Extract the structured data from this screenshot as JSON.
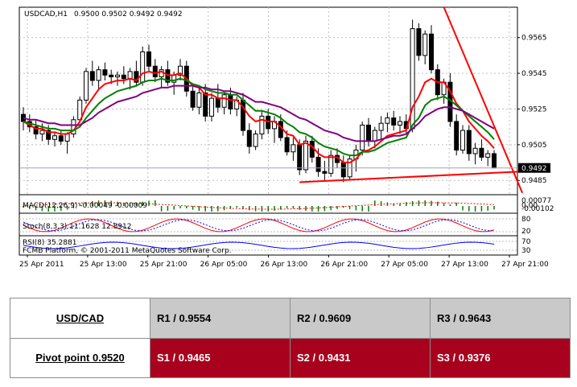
{
  "chart_header": {
    "title": "USDCAD,H1",
    "ohlc": "0.9500 0.9502 0.9492 0.9492"
  },
  "chart_data": [
    {
      "type": "candlestick",
      "title": "USDCAD,H1",
      "ohlc_label": "0.9500 0.9502 0.9492 0.9492",
      "x_tick_labels": [
        "25 Apr 2011",
        "25 Apr 13:00",
        "25 Apr 21:00",
        "26 Apr 05:00",
        "26 Apr 13:00",
        "26 Apr 21:00",
        "27 Apr 05:00",
        "27 Apr 13:00",
        "27 Apr 21:00"
      ],
      "y_tick_labels": [
        "0.9565",
        "0.9545",
        "0.9525",
        "0.9505",
        "0.9485"
      ],
      "ylim": [
        0.9477,
        0.9582
      ],
      "current_price": 0.9492,
      "current_price_label": "0.9492",
      "grid": true,
      "candles": [
        [
          0.9522,
          0.9526,
          0.9513,
          0.9518
        ],
        [
          0.9518,
          0.9522,
          0.9512,
          0.9515
        ],
        [
          0.9515,
          0.9519,
          0.9508,
          0.9511
        ],
        [
          0.9511,
          0.9517,
          0.9507,
          0.9513
        ],
        [
          0.9513,
          0.9516,
          0.9505,
          0.9508
        ],
        [
          0.9508,
          0.9512,
          0.9504,
          0.951
        ],
        [
          0.951,
          0.9513,
          0.9505,
          0.9507
        ],
        [
          0.9507,
          0.9512,
          0.95,
          0.9511
        ],
        [
          0.9511,
          0.9521,
          0.9509,
          0.9519
        ],
        [
          0.9519,
          0.9532,
          0.9517,
          0.953
        ],
        [
          0.953,
          0.9548,
          0.9528,
          0.9546
        ],
        [
          0.9546,
          0.9552,
          0.9538,
          0.9541
        ],
        [
          0.9541,
          0.9549,
          0.9536,
          0.9547
        ],
        [
          0.9547,
          0.9551,
          0.9541,
          0.9544
        ],
        [
          0.9544,
          0.9547,
          0.9539,
          0.9543
        ],
        [
          0.9543,
          0.9546,
          0.9538,
          0.9544
        ],
        [
          0.9544,
          0.9549,
          0.9539,
          0.9542
        ],
        [
          0.9542,
          0.9548,
          0.9536,
          0.9546
        ],
        [
          0.9546,
          0.9552,
          0.9538,
          0.954
        ],
        [
          0.954,
          0.956,
          0.9538,
          0.9557
        ],
        [
          0.9557,
          0.9561,
          0.9546,
          0.9549
        ],
        [
          0.9549,
          0.9553,
          0.954,
          0.9543
        ],
        [
          0.9543,
          0.9549,
          0.9537,
          0.9547
        ],
        [
          0.9547,
          0.9552,
          0.9538,
          0.954
        ],
        [
          0.954,
          0.9546,
          0.9533,
          0.9544
        ],
        [
          0.9544,
          0.9553,
          0.9541,
          0.9549
        ],
        [
          0.9549,
          0.9552,
          0.9532,
          0.9535
        ],
        [
          0.9535,
          0.9539,
          0.9524,
          0.9526
        ],
        [
          0.9526,
          0.9537,
          0.9522,
          0.9534
        ],
        [
          0.9534,
          0.9539,
          0.9518,
          0.9521
        ],
        [
          0.9521,
          0.9534,
          0.9518,
          0.9531
        ],
        [
          0.9531,
          0.9539,
          0.9523,
          0.9526
        ],
        [
          0.9526,
          0.9535,
          0.9522,
          0.9533
        ],
        [
          0.9533,
          0.9537,
          0.9522,
          0.9525
        ],
        [
          0.9525,
          0.9532,
          0.9521,
          0.953
        ],
        [
          0.953,
          0.9534,
          0.951,
          0.9513
        ],
        [
          0.9513,
          0.9517,
          0.95,
          0.9504
        ],
        [
          0.9504,
          0.9513,
          0.9502,
          0.9511
        ],
        [
          0.9511,
          0.9524,
          0.9508,
          0.9521
        ],
        [
          0.9521,
          0.9525,
          0.9511,
          0.9514
        ],
        [
          0.9514,
          0.9521,
          0.9506,
          0.9518
        ],
        [
          0.9518,
          0.9522,
          0.9507,
          0.9509
        ],
        [
          0.9509,
          0.9513,
          0.9499,
          0.9501
        ],
        [
          0.9501,
          0.9509,
          0.9496,
          0.9505
        ],
        [
          0.9505,
          0.9508,
          0.9488,
          0.9491
        ],
        [
          0.9491,
          0.951,
          0.9489,
          0.9507
        ],
        [
          0.9507,
          0.951,
          0.9495,
          0.9498
        ],
        [
          0.9498,
          0.9503,
          0.9487,
          0.949
        ],
        [
          0.949,
          0.9496,
          0.9485,
          0.9489
        ],
        [
          0.9489,
          0.9502,
          0.9487,
          0.9499
        ],
        [
          0.9499,
          0.9503,
          0.9492,
          0.9495
        ],
        [
          0.9495,
          0.9499,
          0.9484,
          0.9487
        ],
        [
          0.9487,
          0.9499,
          0.9485,
          0.9497
        ],
        [
          0.9497,
          0.9505,
          0.949,
          0.9502
        ],
        [
          0.9502,
          0.9518,
          0.9499,
          0.9516
        ],
        [
          0.9516,
          0.952,
          0.9504,
          0.9507
        ],
        [
          0.9507,
          0.9515,
          0.9503,
          0.9513
        ],
        [
          0.9513,
          0.9521,
          0.9508,
          0.9517
        ],
        [
          0.9517,
          0.9523,
          0.9512,
          0.952
        ],
        [
          0.952,
          0.9524,
          0.9513,
          0.9516
        ],
        [
          0.9516,
          0.9521,
          0.9511,
          0.9518
        ],
        [
          0.9518,
          0.9522,
          0.9511,
          0.9514
        ],
        [
          0.9514,
          0.9575,
          0.9512,
          0.957
        ],
        [
          0.957,
          0.9573,
          0.9552,
          0.9555
        ],
        [
          0.9555,
          0.9569,
          0.955,
          0.9567
        ],
        [
          0.9567,
          0.9572,
          0.9545,
          0.9547
        ],
        [
          0.9547,
          0.955,
          0.953,
          0.9533
        ],
        [
          0.9533,
          0.9542,
          0.9528,
          0.954
        ],
        [
          0.954,
          0.9545,
          0.9515,
          0.9518
        ],
        [
          0.9518,
          0.9522,
          0.9499,
          0.9502
        ],
        [
          0.9502,
          0.9516,
          0.95,
          0.9513
        ],
        [
          0.9513,
          0.9516,
          0.9496,
          0.95
        ],
        [
          0.95,
          0.9506,
          0.9494,
          0.9503
        ],
        [
          0.9503,
          0.9508,
          0.9496,
          0.9498
        ],
        [
          0.9498,
          0.9502,
          0.9493,
          0.95
        ],
        [
          0.95,
          0.9502,
          0.9492,
          0.9492
        ]
      ],
      "series": [
        {
          "name": "",
          "color": "#ff0000",
          "values": [
            0.9518,
            0.9516,
            0.9514,
            0.9514,
            0.9512,
            0.9512,
            0.9511,
            0.9511,
            0.9513,
            0.9518,
            0.9526,
            0.9531,
            0.9536,
            0.9539,
            0.954,
            0.9541,
            0.9541,
            0.9542,
            0.9541,
            0.9545,
            0.9546,
            0.9545,
            0.9546,
            0.9544,
            0.9544,
            0.9545,
            0.9542,
            0.9538,
            0.9537,
            0.9533,
            0.9533,
            0.9531,
            0.9531,
            0.953,
            0.953,
            0.9526,
            0.9521,
            0.9518,
            0.9519,
            0.9518,
            0.9518,
            0.9515,
            0.9511,
            0.951,
            0.9505,
            0.9506,
            0.9504,
            0.95,
            0.9498,
            0.9498,
            0.9498,
            0.9495,
            0.9495,
            0.9497,
            0.9501,
            0.9502,
            0.9504,
            0.9507,
            0.951,
            0.9511,
            0.9512,
            0.9513,
            0.9526,
            0.9532,
            0.954,
            0.9542,
            0.954,
            0.954,
            0.9535,
            0.9528,
            0.9524,
            0.9518,
            0.9514,
            0.951,
            0.9507,
            0.9503
          ]
        },
        {
          "name": "",
          "color": "#008000",
          "values": [
            0.9518,
            0.9517,
            0.9516,
            0.9515,
            0.9514,
            0.9514,
            0.9513,
            0.9513,
            0.9513,
            0.9515,
            0.952,
            0.9524,
            0.9528,
            0.9531,
            0.9533,
            0.9535,
            0.9536,
            0.9537,
            0.9538,
            0.954,
            0.9541,
            0.9541,
            0.9542,
            0.9541,
            0.9541,
            0.9542,
            0.9541,
            0.9539,
            0.9538,
            0.9536,
            0.9535,
            0.9534,
            0.9534,
            0.9533,
            0.9533,
            0.953,
            0.9527,
            0.9524,
            0.9524,
            0.9523,
            0.9522,
            0.952,
            0.9517,
            0.9515,
            0.9512,
            0.9511,
            0.9509,
            0.9506,
            0.9504,
            0.9503,
            0.9502,
            0.95,
            0.9499,
            0.9499,
            0.9501,
            0.9501,
            0.9502,
            0.9504,
            0.9506,
            0.9507,
            0.9508,
            0.9509,
            0.9516,
            0.952,
            0.9527,
            0.953,
            0.9531,
            0.9532,
            0.953,
            0.9527,
            0.9524,
            0.9521,
            0.9518,
            0.9515,
            0.9512,
            0.9508
          ]
        },
        {
          "name": "",
          "color": "#800080",
          "values": [
            0.952,
            0.9519,
            0.9519,
            0.9518,
            0.9517,
            0.9517,
            0.9516,
            0.9516,
            0.9516,
            0.9516,
            0.9518,
            0.952,
            0.9523,
            0.9525,
            0.9527,
            0.9529,
            0.953,
            0.9531,
            0.9532,
            0.9534,
            0.9535,
            0.9536,
            0.9537,
            0.9537,
            0.9538,
            0.9538,
            0.9538,
            0.9538,
            0.9537,
            0.9537,
            0.9536,
            0.9536,
            0.9535,
            0.9535,
            0.9534,
            0.9533,
            0.9531,
            0.9529,
            0.9529,
            0.9528,
            0.9527,
            0.9526,
            0.9524,
            0.9522,
            0.952,
            0.9519,
            0.9517,
            0.9515,
            0.9513,
            0.9512,
            0.9511,
            0.9509,
            0.9508,
            0.9507,
            0.9507,
            0.9507,
            0.9507,
            0.9508,
            0.9509,
            0.951,
            0.951,
            0.9511,
            0.9514,
            0.9517,
            0.9521,
            0.9523,
            0.9525,
            0.9526,
            0.9526,
            0.9525,
            0.9524,
            0.9522,
            0.952,
            0.9518,
            0.9516,
            0.9514
          ]
        }
      ],
      "annotations": [
        {
          "kind": "trendline",
          "color": "#ff0000",
          "from": {
            "bar": 44,
            "price": 0.9484
          },
          "to": {
            "bar": 79.5,
            "price": 0.949
          }
        },
        {
          "kind": "trendline",
          "color": "#ff0000",
          "from": {
            "bar": 67,
            "price": 0.9582
          },
          "to": {
            "bar": 79.5,
            "price": 0.9478
          }
        }
      ]
    },
    {
      "type": "bar",
      "panel": "MACD",
      "label": "MACD(12,26,9) -0.00049 -0.00009",
      "y_tick_labels": [
        "0.00077",
        "0.00",
        "-0.00102"
      ]
    },
    {
      "type": "line",
      "panel": "Stochastic",
      "label": "Stoch(8,3,3) 11.1628 12.8912",
      "y_tick_labels": [
        "80",
        "20"
      ]
    },
    {
      "type": "line",
      "panel": "RSI",
      "label": "RSI(8) 35.2881",
      "y_tick_labels": [
        "70",
        "30"
      ]
    }
  ],
  "watermark": "FCMB Platform, © 2001-2011 MetaQuotes Software Corp.",
  "pivot_table": {
    "pair": "USD/CAD",
    "pivot": "Pivot point 0.9520",
    "r1": "R1 / 0.9554",
    "r2": "R2 / 0.9609",
    "r3": "R3 / 0.9643",
    "s1": "S1 / 0.9465",
    "s2": "S2 / 0.9431",
    "s3": "S3 / 0.9376",
    "colors": {
      "resistance_bg": "#c9c9c9",
      "support_bg": "#a8011d",
      "support_text": "#ffffff"
    }
  }
}
